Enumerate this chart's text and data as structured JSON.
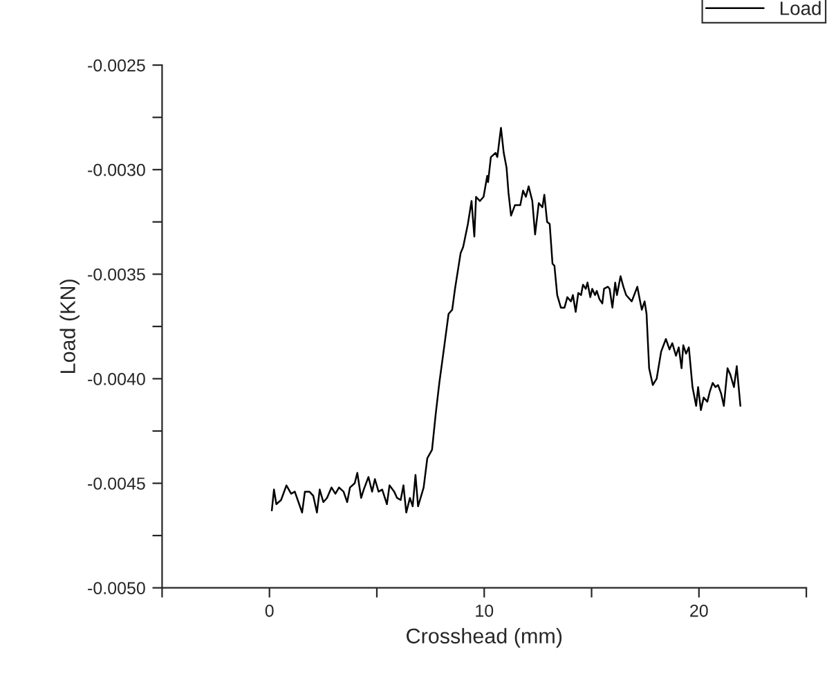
{
  "chart_data": {
    "type": "line",
    "xlabel": "Crosshead (mm)",
    "ylabel": "Load (KN)",
    "legend": "top right",
    "grid": false,
    "marker": "none",
    "line_style": "solid",
    "xlim": [
      -5,
      25
    ],
    "xticks": [
      {
        "value": -5,
        "label": null
      },
      0,
      {
        "value": 5,
        "label": null
      },
      10,
      {
        "value": 15,
        "label": null
      },
      20,
      {
        "value": 25,
        "label": null
      }
    ],
    "ylim": [
      -0.005,
      -0.0025
    ],
    "yticks": [
      {
        "value": -0.005,
        "label": "-0.0050"
      },
      {
        "value": -0.00475,
        "label": null
      },
      {
        "value": -0.0045,
        "label": "-0.0045"
      },
      {
        "value": -0.00425,
        "label": null
      },
      {
        "value": -0.004,
        "label": "-0.0040"
      },
      {
        "value": -0.00375,
        "label": null
      },
      {
        "value": -0.0035,
        "label": "-0.0035"
      },
      {
        "value": -0.00325,
        "label": null
      },
      {
        "value": -0.003,
        "label": "-0.0030"
      },
      {
        "value": -0.00275,
        "label": null
      },
      {
        "value": -0.0025,
        "label": "-0.0025"
      }
    ],
    "series": [
      {
        "name": "Load",
        "color": "#000000",
        "x": [
          0.11,
          0.21,
          0.32,
          0.54,
          0.79,
          1.01,
          1.18,
          1.35,
          1.52,
          1.65,
          1.86,
          2.04,
          2.21,
          2.34,
          2.51,
          2.68,
          2.89,
          3.07,
          3.24,
          3.45,
          3.62,
          3.75,
          3.97,
          4.09,
          4.27,
          4.39,
          4.61,
          4.78,
          4.91,
          5.08,
          5.25,
          5.47,
          5.59,
          5.81,
          5.94,
          6.11,
          6.24,
          6.37,
          6.54,
          6.67,
          6.8,
          6.92,
          7.18,
          7.35,
          7.57,
          7.74,
          7.91,
          8.12,
          8.34,
          8.51,
          8.64,
          8.9,
          9.02,
          9.24,
          9.41,
          9.54,
          9.62,
          9.8,
          9.97,
          10.14,
          10.18,
          10.31,
          10.53,
          10.61,
          10.78,
          10.91,
          11.04,
          11.13,
          11.25,
          11.43,
          11.68,
          11.81,
          11.94,
          12.07,
          12.24,
          12.37,
          12.54,
          12.71,
          12.8,
          12.93,
          13.05,
          13.18,
          13.27,
          13.4,
          13.57,
          13.74,
          13.87,
          14.04,
          14.13,
          14.26,
          14.38,
          14.51,
          14.6,
          14.73,
          14.81,
          14.94,
          15.03,
          15.16,
          15.24,
          15.37,
          15.5,
          15.58,
          15.76,
          15.84,
          15.97,
          16.1,
          16.18,
          16.35,
          16.48,
          16.61,
          16.87,
          17.13,
          17.26,
          17.34,
          17.47,
          17.56,
          17.68,
          17.85,
          18.03,
          18.24,
          18.46,
          18.63,
          18.76,
          18.93,
          19.06,
          19.19,
          19.27,
          19.4,
          19.53,
          19.7,
          19.87,
          19.96,
          20.09,
          20.22,
          20.39,
          20.51,
          20.64,
          20.77,
          20.89,
          21.03,
          21.16,
          21.33,
          21.46,
          21.63,
          21.76,
          21.93
        ],
        "values": [
          -0.00463,
          -0.00453,
          -0.0046,
          -0.00458,
          -0.00451,
          -0.00455,
          -0.00454,
          -0.00459,
          -0.00464,
          -0.00454,
          -0.00454,
          -0.00456,
          -0.00464,
          -0.00453,
          -0.00459,
          -0.00457,
          -0.00452,
          -0.00455,
          -0.00452,
          -0.00454,
          -0.00459,
          -0.00452,
          -0.0045,
          -0.00445,
          -0.00457,
          -0.00453,
          -0.00447,
          -0.00454,
          -0.00448,
          -0.00454,
          -0.00453,
          -0.0046,
          -0.00451,
          -0.00454,
          -0.00457,
          -0.00458,
          -0.00451,
          -0.00464,
          -0.00457,
          -0.00461,
          -0.00446,
          -0.00461,
          -0.00452,
          -0.00438,
          -0.00434,
          -0.00417,
          -0.00402,
          -0.00386,
          -0.00369,
          -0.00367,
          -0.00357,
          -0.0034,
          -0.00337,
          -0.00326,
          -0.00315,
          -0.00332,
          -0.00313,
          -0.00315,
          -0.00313,
          -0.00303,
          -0.00306,
          -0.00294,
          -0.00292,
          -0.00294,
          -0.0028,
          -0.00292,
          -0.00299,
          -0.00311,
          -0.00322,
          -0.00317,
          -0.00317,
          -0.0031,
          -0.00313,
          -0.00308,
          -0.00315,
          -0.00331,
          -0.00316,
          -0.00318,
          -0.00312,
          -0.00325,
          -0.00326,
          -0.00345,
          -0.00346,
          -0.0036,
          -0.00366,
          -0.00366,
          -0.00361,
          -0.00363,
          -0.0036,
          -0.00368,
          -0.00359,
          -0.0036,
          -0.00355,
          -0.00357,
          -0.00354,
          -0.00361,
          -0.00357,
          -0.0036,
          -0.00358,
          -0.00362,
          -0.00364,
          -0.00357,
          -0.00356,
          -0.00357,
          -0.00366,
          -0.00354,
          -0.0036,
          -0.00351,
          -0.00356,
          -0.0036,
          -0.00363,
          -0.00356,
          -0.00363,
          -0.00367,
          -0.00363,
          -0.00369,
          -0.00395,
          -0.00403,
          -0.004,
          -0.00387,
          -0.00381,
          -0.00386,
          -0.00383,
          -0.00389,
          -0.00385,
          -0.00395,
          -0.00384,
          -0.00388,
          -0.00385,
          -0.00404,
          -0.00413,
          -0.00404,
          -0.00415,
          -0.00409,
          -0.00411,
          -0.00406,
          -0.00402,
          -0.00404,
          -0.00403,
          -0.00407,
          -0.00413,
          -0.00395,
          -0.00398,
          -0.00404,
          -0.00394,
          -0.00413
        ]
      }
    ]
  }
}
